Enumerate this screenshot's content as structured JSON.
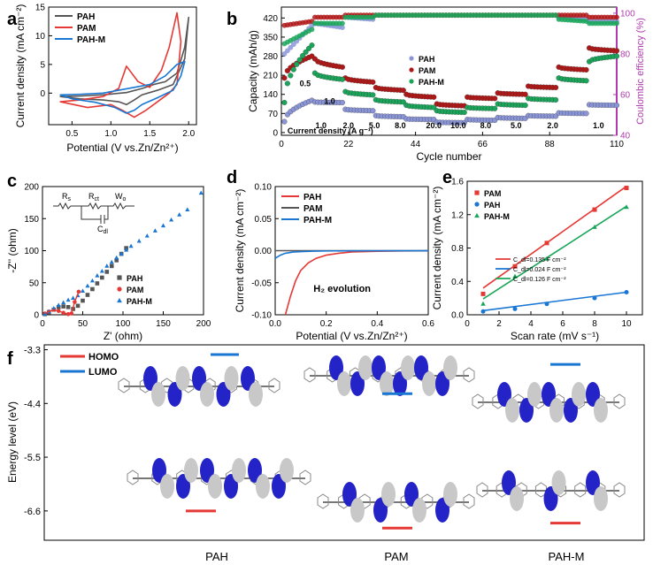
{
  "colors": {
    "pah": "#555555",
    "pam": "#e53935",
    "pahm": "#1976d2",
    "cap_pah": "#8a95d8",
    "cap_pam": "#b01818",
    "cap_pahm": "#1aa65a",
    "ce_axis": "#b03bb0",
    "orbital_blue": "#2323c8",
    "orbital_gray": "#c8c8c8"
  },
  "chart_data": [
    {
      "id": "a",
      "type": "line",
      "panel_label": "a",
      "xlabel": "Potential (V vs.Zn/Zn²⁺)",
      "ylabel": "Current density (mA cm⁻²)",
      "xlim": [
        0.2,
        2.1
      ],
      "ylim": [
        -5.5,
        15
      ],
      "xticks": [
        "0.5",
        "1.0",
        "1.5",
        "2.0"
      ],
      "xtick_values": [
        0.5,
        1.0,
        1.5,
        2.0
      ],
      "yticks": [
        "0",
        "5",
        "10",
        "15"
      ],
      "ytick_values": [
        0,
        5,
        10,
        15
      ],
      "legend": [
        "PAH",
        "PAM",
        "PAH-M"
      ],
      "series": [
        {
          "name": "PAH",
          "color_key": "pah",
          "x": [
            0.35,
            0.6,
            0.9,
            1.2,
            1.4,
            1.55,
            1.7,
            1.85,
            1.95,
            2.0,
            1.95,
            1.8,
            1.6,
            1.4,
            1.3,
            1.2,
            1.1,
            0.9,
            0.6,
            0.35
          ],
          "y": [
            -0.6,
            -0.5,
            -0.3,
            0.1,
            0.8,
            1.5,
            2.0,
            3.5,
            8.0,
            13.2,
            6.0,
            1.5,
            0.5,
            -0.3,
            -1.2,
            -2.0,
            -1.5,
            -1.2,
            -1.0,
            -0.6
          ]
        },
        {
          "name": "PAM",
          "color_key": "pam",
          "x": [
            0.35,
            0.6,
            0.9,
            1.1,
            1.2,
            1.35,
            1.5,
            1.65,
            1.75,
            1.85,
            1.9,
            1.85,
            1.75,
            1.6,
            1.45,
            1.3,
            1.15,
            1.0,
            0.7,
            0.35
          ],
          "y": [
            -1.5,
            -1.2,
            -0.6,
            0.8,
            4.7,
            2.0,
            1.0,
            4.0,
            8.0,
            14.0,
            9.0,
            1.5,
            0.0,
            -1.5,
            -3.0,
            -4.2,
            -3.0,
            -2.0,
            -2.5,
            -1.5
          ]
        },
        {
          "name": "PAH-M",
          "color_key": "pahm",
          "x": [
            0.35,
            0.6,
            0.9,
            1.1,
            1.3,
            1.5,
            1.7,
            1.85,
            1.95,
            1.9,
            1.8,
            1.6,
            1.4,
            1.3,
            1.2,
            1.05,
            0.8,
            0.5,
            0.35
          ],
          "y": [
            -0.3,
            -0.2,
            0.0,
            0.5,
            1.0,
            1.5,
            3.0,
            5.0,
            5.5,
            3.0,
            0.5,
            -0.8,
            -2.0,
            -3.0,
            -3.5,
            -2.5,
            -1.6,
            -1.0,
            -0.3
          ]
        }
      ]
    },
    {
      "id": "b",
      "type": "scatter",
      "panel_label": "b",
      "xlabel": "Cycle number",
      "ylabel": "Capacity (mAh/g)",
      "y2label": "Coulombic efficiency (%)",
      "xlim": [
        0,
        110
      ],
      "ylim": [
        -10,
        460
      ],
      "y2lim": [
        40,
        103
      ],
      "xticks": [
        "0",
        "22",
        "44",
        "66",
        "88",
        "110"
      ],
      "xtick_values": [
        0,
        22,
        44,
        66,
        88,
        110
      ],
      "yticks": [
        "0",
        "70",
        "140",
        "210",
        "280",
        "350",
        "420"
      ],
      "ytick_values": [
        0,
        70,
        140,
        210,
        280,
        350,
        420
      ],
      "y2ticks": [
        "40",
        "60",
        "80",
        "100"
      ],
      "y2tick_values": [
        40,
        60,
        80,
        100
      ],
      "legend": [
        "PAH",
        "PAM",
        "PAH-M"
      ],
      "rate_labels": [
        "0.5",
        "1.0",
        "2.0",
        "5.0",
        "8.0",
        "20.0",
        "10.0",
        "8.0",
        "5.0",
        "2.0",
        "1.0"
      ],
      "rate_label_x": [
        6,
        13,
        22,
        30.5,
        39,
        50,
        58,
        67,
        77,
        89,
        104
      ],
      "rate_label_y": [
        -1,
        1,
        2,
        3,
        4,
        5,
        5,
        4,
        3,
        2,
        1
      ],
      "current_density_label": "Current density (A g⁻¹)",
      "segments": [
        [
          1,
          10
        ],
        [
          11,
          20
        ],
        [
          21,
          30
        ],
        [
          31,
          40
        ],
        [
          41,
          50
        ],
        [
          51,
          60
        ],
        [
          61,
          70
        ],
        [
          71,
          80
        ],
        [
          81,
          90
        ],
        [
          91,
          100
        ],
        [
          101,
          110
        ]
      ],
      "capacity": {
        "PAH": [
          [
            40,
            118
          ],
          [
            112,
            110
          ],
          [
            85,
            80
          ],
          [
            62,
            58
          ],
          [
            50,
            48
          ],
          [
            38,
            36
          ],
          [
            48,
            45
          ],
          [
            55,
            52
          ],
          [
            62,
            60
          ],
          [
            72,
            70
          ],
          [
            102,
            100
          ]
        ],
        "PAM": [
          [
            200,
            280
          ],
          [
            270,
            240
          ],
          [
            200,
            185
          ],
          [
            165,
            155
          ],
          [
            140,
            130
          ],
          [
            105,
            98
          ],
          [
            130,
            125
          ],
          [
            145,
            140
          ],
          [
            170,
            165
          ],
          [
            240,
            230
          ],
          [
            310,
            300
          ]
        ],
        "PAH-M": [
          [
            110,
            320
          ],
          [
            218,
            195
          ],
          [
            150,
            138
          ],
          [
            120,
            112
          ],
          [
            100,
            92
          ],
          [
            80,
            74
          ],
          [
            92,
            88
          ],
          [
            105,
            100
          ],
          [
            125,
            120
          ],
          [
            200,
            190
          ],
          [
            260,
            280
          ]
        ]
      },
      "ce": {
        "PAH": [
          [
            80,
            94
          ],
          [
            95,
            93
          ],
          [
            98,
            97
          ],
          [
            99,
            99
          ],
          [
            99,
            99
          ],
          [
            99,
            99
          ],
          [
            99,
            99
          ],
          [
            99,
            99
          ],
          [
            99,
            99
          ],
          [
            98,
            97
          ],
          [
            96,
            96
          ]
        ],
        "PAM": [
          [
            94,
            96
          ],
          [
            98,
            98
          ],
          [
            99,
            99
          ],
          [
            99,
            99
          ],
          [
            99,
            99
          ],
          [
            99,
            99
          ],
          [
            99,
            99
          ],
          [
            99,
            99
          ],
          [
            99,
            99
          ],
          [
            99,
            99
          ],
          [
            98,
            98
          ]
        ],
        "PAH-M": [
          [
            85,
            92
          ],
          [
            95,
            95
          ],
          [
            98,
            98
          ],
          [
            99,
            99
          ],
          [
            99,
            99
          ],
          [
            99,
            99
          ],
          [
            99,
            99
          ],
          [
            99,
            99
          ],
          [
            99,
            99
          ],
          [
            97,
            96
          ],
          [
            95,
            95
          ]
        ]
      }
    },
    {
      "id": "c",
      "type": "scatter",
      "panel_label": "c",
      "xlabel": "Z' (ohm)",
      "ylabel": "-Z'' (ohm)",
      "xlim": [
        0,
        200
      ],
      "ylim": [
        0,
        200
      ],
      "xticks": [
        "0",
        "50",
        "100",
        "150",
        "200"
      ],
      "xtick_values": [
        0,
        50,
        100,
        150,
        200
      ],
      "yticks": [
        "0",
        "50",
        "100",
        "150",
        "200"
      ],
      "ytick_values": [
        0,
        50,
        100,
        150,
        200
      ],
      "legend": [
        "PAH",
        "PAM",
        "PAH-M"
      ],
      "circuit_labels": {
        "rs": "R",
        "rs_sub": "s",
        "rct": "R",
        "rct_sub": "ct",
        "wo": "W",
        "wo_sub": "o",
        "cdl": "C",
        "cdl_sub": "dl"
      },
      "series": [
        {
          "name": "PAH",
          "color_key": "pah",
          "marker": "square",
          "x": [
            3,
            8,
            14,
            20,
            26,
            32,
            38,
            44,
            50,
            56,
            62,
            68,
            74,
            80,
            86,
            92,
            98,
            104
          ],
          "y": [
            1,
            4,
            8,
            12,
            13,
            12,
            9,
            14,
            22,
            31,
            40,
            49,
            58,
            67,
            76,
            85,
            95,
            104
          ]
        },
        {
          "name": "PAM",
          "color_key": "pam",
          "marker": "circle",
          "x": [
            3,
            8,
            14,
            20,
            26,
            32,
            36,
            40,
            45
          ],
          "y": [
            2,
            5,
            8,
            6,
            3,
            1,
            2,
            20,
            36
          ]
        },
        {
          "name": "PAH-M",
          "color_key": "pahm",
          "marker": "triangle",
          "x": [
            3,
            8,
            14,
            20,
            26,
            32,
            38,
            44,
            50,
            56,
            62,
            68,
            74,
            80,
            86,
            92,
            98,
            104,
            110,
            120,
            130,
            140,
            150,
            160,
            170,
            180,
            197
          ],
          "y": [
            1,
            5,
            10,
            15,
            19,
            23,
            26,
            30,
            37,
            45,
            53,
            61,
            68,
            76,
            82,
            89,
            95,
            101,
            107,
            115,
            123,
            131,
            139,
            148,
            156,
            164,
            190
          ]
        }
      ]
    },
    {
      "id": "d",
      "type": "line",
      "panel_label": "d",
      "xlabel": "Potential (V vs.Zn/Zn²⁺)",
      "ylabel": "Current density (mA cm⁻²)",
      "xlim": [
        0,
        0.6
      ],
      "ylim": [
        -0.1,
        0.1
      ],
      "xticks": [
        "0.0",
        "0.2",
        "0.4",
        "0.6"
      ],
      "xtick_values": [
        0,
        0.2,
        0.4,
        0.6
      ],
      "yticks": [
        "-0.10",
        "-0.05",
        "0.00",
        "0.05",
        "0.10"
      ],
      "ytick_values": [
        -0.1,
        -0.05,
        0,
        0.05,
        0.1
      ],
      "legend": [
        "PAH",
        "PAM",
        "PAH-M"
      ],
      "annotation": "H₂ evolution",
      "series": [
        {
          "name": "PAH",
          "color_key": "pam",
          "x": [
            0.04,
            0.06,
            0.08,
            0.1,
            0.13,
            0.16,
            0.2,
            0.25,
            0.3,
            0.4,
            0.5,
            0.6
          ],
          "y": [
            -0.1,
            -0.071,
            -0.047,
            -0.031,
            -0.019,
            -0.012,
            -0.007,
            -0.004,
            -0.002,
            -0.001,
            -0.0005,
            -0.0002
          ]
        },
        {
          "name": "PAM",
          "color_key": "pah",
          "x": [
            0.0,
            0.1,
            0.3,
            0.6
          ],
          "y": [
            0.0,
            0.0,
            0.0,
            0.0
          ]
        },
        {
          "name": "PAH-M",
          "color_key": "pahm",
          "x": [
            0.0,
            0.02,
            0.04,
            0.07,
            0.1,
            0.15,
            0.2,
            0.3,
            0.6
          ],
          "y": [
            -0.012,
            -0.007,
            -0.004,
            -0.0022,
            -0.0014,
            -0.0008,
            -0.0005,
            -0.0002,
            -0.0001
          ]
        }
      ]
    },
    {
      "id": "e",
      "type": "scatter",
      "panel_label": "e",
      "xlabel": "Scan rate (mV s⁻¹)",
      "ylabel": "Current density (mA cm⁻²)",
      "xlim": [
        0,
        11
      ],
      "ylim": [
        0,
        1.6
      ],
      "xticks": [
        "0",
        "2",
        "4",
        "6",
        "8",
        "10"
      ],
      "xtick_values": [
        0,
        2,
        4,
        6,
        8,
        10
      ],
      "yticks": [
        "0.0",
        "0.4",
        "0.8",
        "1.2",
        "1.6"
      ],
      "ytick_values": [
        0,
        0.4,
        0.8,
        1.2,
        1.6
      ],
      "legend": [
        "PAM",
        "PAH",
        "PAH-M"
      ],
      "fit_labels": [
        "C_dl=0.135 F cm⁻²",
        "C_dl=0.024 F cm⁻²",
        "C_dl=0.126 F cm⁻²"
      ],
      "series": [
        {
          "name": "PAM",
          "color_key": "pam",
          "marker": "square",
          "x": [
            1,
            3,
            5,
            8,
            10
          ],
          "y": [
            0.25,
            0.58,
            0.86,
            1.26,
            1.52
          ],
          "fit": [
            [
              1,
              0.32
            ],
            [
              10,
              1.54
            ]
          ]
        },
        {
          "name": "PAH",
          "color_key": "pahm",
          "marker": "circle",
          "x": [
            1,
            3,
            5,
            8,
            10
          ],
          "y": [
            0.04,
            0.07,
            0.13,
            0.2,
            0.27
          ],
          "fit": [
            [
              1,
              0.05
            ],
            [
              10,
              0.27
            ]
          ]
        },
        {
          "name": "PAH-M",
          "color_key": "cap_pahm",
          "marker": "triangle",
          "x": [
            1,
            3,
            5,
            8,
            10
          ],
          "y": [
            0.13,
            0.46,
            0.67,
            1.05,
            1.29
          ],
          "fit": [
            [
              1,
              0.19
            ],
            [
              10,
              1.3
            ]
          ]
        }
      ]
    },
    {
      "id": "f",
      "type": "bar",
      "panel_label": "f",
      "ylabel": "Energy level (eV)",
      "ylim": [
        -7.2,
        -3.2
      ],
      "yticks": [
        "-3.3",
        "-4.4",
        "-5.5",
        "-6.6"
      ],
      "ytick_values": [
        -3.3,
        -4.4,
        -5.5,
        -6.6
      ],
      "categories": [
        "PAH",
        "PAM",
        "PAH-M"
      ],
      "legend": [
        "HOMO",
        "LUMO"
      ],
      "homo": [
        -6.6,
        -6.95,
        -6.85
      ],
      "lumo": [
        -3.4,
        -4.2,
        -3.6
      ]
    }
  ]
}
